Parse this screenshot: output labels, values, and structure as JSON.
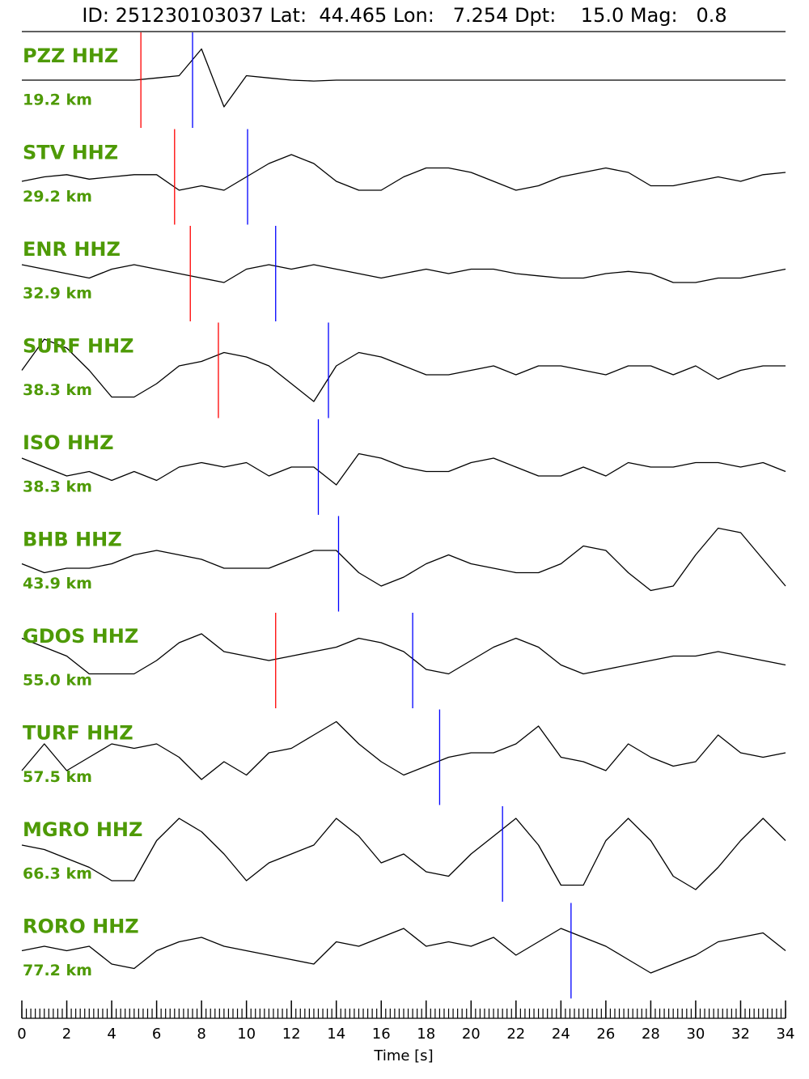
{
  "chart_data": {
    "type": "seismogram",
    "title": "ID: 251230103037 Lat:  44.465 Lon:   7.254 Dpt:    15.0 Mag:   0.8",
    "xlabel": "Time [s]",
    "xlim": [
      0,
      34
    ],
    "xticks": [
      0,
      2,
      4,
      6,
      8,
      10,
      12,
      14,
      16,
      18,
      20,
      22,
      24,
      26,
      28,
      30,
      32,
      34
    ],
    "minor_tick_interval": 0.2,
    "ylim": [
      -1,
      1
    ],
    "trace_color": "#000000",
    "p_color": "#ff0000",
    "s_color": "#0000ff",
    "label_color": "#4e9a06",
    "x": [
      0,
      1,
      2,
      3,
      4,
      5,
      6,
      7,
      8,
      9,
      10,
      11,
      12,
      13,
      14,
      15,
      16,
      17,
      18,
      19,
      20,
      21,
      22,
      23,
      24,
      25,
      26,
      27,
      28,
      29,
      30,
      31,
      32,
      33,
      34
    ],
    "traces": [
      {
        "name": "PZZ HHZ",
        "distance": "19.2 km",
        "p_pick": 5.3,
        "s_pick": 7.6,
        "values": [
          0,
          0,
          0,
          0,
          0,
          0,
          0.05,
          0.1,
          0.7,
          -0.6,
          0.1,
          0.05,
          0,
          -0.02,
          0,
          0,
          0,
          0,
          0,
          0,
          0,
          0,
          0,
          0,
          0,
          0,
          0,
          0,
          0,
          0,
          0,
          0,
          0,
          0,
          0
        ]
      },
      {
        "name": "STV HHZ",
        "distance": "29.2 km",
        "p_pick": 6.8,
        "s_pick": 10.05,
        "values": [
          -0.1,
          0,
          0.05,
          -0.05,
          0,
          0.05,
          0.05,
          -0.3,
          -0.2,
          -0.3,
          0,
          0.3,
          0.5,
          0.3,
          -0.1,
          -0.3,
          -0.3,
          0,
          0.2,
          0.2,
          0.1,
          -0.1,
          -0.3,
          -0.2,
          0,
          0.1,
          0.2,
          0.1,
          -0.2,
          -0.2,
          -0.1,
          0,
          -0.1,
          0.05,
          0.1
        ]
      },
      {
        "name": "ENR HHZ",
        "distance": "32.9 km",
        "p_pick": 7.5,
        "s_pick": 11.3,
        "values": [
          0.2,
          0.1,
          0,
          -0.1,
          0.1,
          0.2,
          0.1,
          0,
          -0.1,
          -0.2,
          0.1,
          0.2,
          0.1,
          0.2,
          0.1,
          0,
          -0.1,
          0,
          0.1,
          0,
          0.1,
          0.1,
          0,
          -0.05,
          -0.1,
          -0.1,
          0,
          0.05,
          0,
          -0.2,
          -0.2,
          -0.1,
          -0.1,
          0,
          0.1
        ]
      },
      {
        "name": "SURF HHZ",
        "distance": "38.3 km",
        "p_pick": 8.75,
        "s_pick": 13.65,
        "values": [
          0,
          0.7,
          0.5,
          0,
          -0.6,
          -0.6,
          -0.3,
          0.1,
          0.2,
          0.4,
          0.3,
          0.1,
          -0.3,
          -0.7,
          0.1,
          0.4,
          0.3,
          0.1,
          -0.1,
          -0.1,
          0,
          0.1,
          -0.1,
          0.1,
          0.1,
          0,
          -0.1,
          0.1,
          0.1,
          -0.1,
          0.1,
          -0.2,
          0,
          0.1,
          0.1
        ]
      },
      {
        "name": "ISO HHZ",
        "distance": "38.3 km",
        "p_pick": null,
        "s_pick": 13.2,
        "values": [
          0.2,
          0,
          -0.2,
          -0.1,
          -0.3,
          -0.1,
          -0.3,
          0,
          0.1,
          0,
          0.1,
          -0.2,
          0,
          0,
          -0.4,
          0.3,
          0.2,
          0,
          -0.1,
          -0.1,
          0.1,
          0.2,
          0,
          -0.2,
          -0.2,
          0,
          -0.2,
          0.1,
          0,
          0,
          0.1,
          0.1,
          0,
          0.1,
          -0.1
        ]
      },
      {
        "name": "BHB HHZ",
        "distance": "43.9 km",
        "p_pick": null,
        "s_pick": 14.1,
        "values": [
          0,
          -0.2,
          -0.1,
          -0.1,
          0,
          0.2,
          0.3,
          0.2,
          0.1,
          -0.1,
          -0.1,
          -0.1,
          0.1,
          0.3,
          0.3,
          -0.2,
          -0.5,
          -0.3,
          0,
          0.2,
          0,
          -0.1,
          -0.2,
          -0.2,
          0,
          0.4,
          0.3,
          -0.2,
          -0.6,
          -0.5,
          0.2,
          0.8,
          0.7,
          0.1,
          -0.5
        ]
      },
      {
        "name": "GDOS HHZ",
        "distance": "55.0 km",
        "p_pick": 11.3,
        "s_pick": 17.4,
        "values": [
          0.5,
          0.3,
          0.1,
          -0.3,
          -0.3,
          -0.3,
          0,
          0.4,
          0.6,
          0.2,
          0.1,
          0,
          0.1,
          0.2,
          0.3,
          0.5,
          0.4,
          0.2,
          -0.2,
          -0.3,
          0,
          0.3,
          0.5,
          0.3,
          -0.1,
          -0.3,
          -0.2,
          -0.1,
          0,
          0.1,
          0.1,
          0.2,
          0.1,
          0,
          -0.1
        ]
      },
      {
        "name": "TURF HHZ",
        "distance": "57.5 km",
        "p_pick": null,
        "s_pick": 18.6,
        "values": [
          -0.3,
          0.3,
          -0.3,
          0,
          0.3,
          0.2,
          0.3,
          0,
          -0.5,
          -0.1,
          -0.4,
          0.1,
          0.2,
          0.5,
          0.8,
          0.3,
          -0.1,
          -0.4,
          -0.2,
          0,
          0.1,
          0.1,
          0.3,
          0.7,
          0,
          -0.1,
          -0.3,
          0.3,
          0,
          -0.2,
          -0.1,
          0.5,
          0.1,
          0,
          0.1
        ]
      },
      {
        "name": "MGRO HHZ",
        "distance": "66.3 km",
        "p_pick": null,
        "s_pick": 21.4,
        "values": [
          0.2,
          0.1,
          -0.1,
          -0.3,
          -0.6,
          -0.6,
          0.3,
          0.8,
          0.5,
          0,
          -0.6,
          -0.2,
          0,
          0.2,
          0.8,
          0.4,
          -0.2,
          0,
          -0.4,
          -0.5,
          0,
          0.4,
          0.8,
          0.2,
          -0.7,
          -0.7,
          0.3,
          0.8,
          0.3,
          -0.5,
          -0.8,
          -0.3,
          0.3,
          0.8,
          0.3
        ]
      },
      {
        "name": "RORO HHZ",
        "distance": "77.2 km",
        "p_pick": null,
        "s_pick": 24.45,
        "values": [
          0,
          0.1,
          0,
          0.1,
          -0.3,
          -0.4,
          0,
          0.2,
          0.3,
          0.1,
          0,
          -0.1,
          -0.2,
          -0.3,
          0.2,
          0.1,
          0.3,
          0.5,
          0.1,
          0.2,
          0.1,
          0.3,
          -0.1,
          0.2,
          0.5,
          0.3,
          0.1,
          -0.2,
          -0.5,
          -0.3,
          -0.1,
          0.2,
          0.3,
          0.4,
          0
        ]
      }
    ]
  }
}
